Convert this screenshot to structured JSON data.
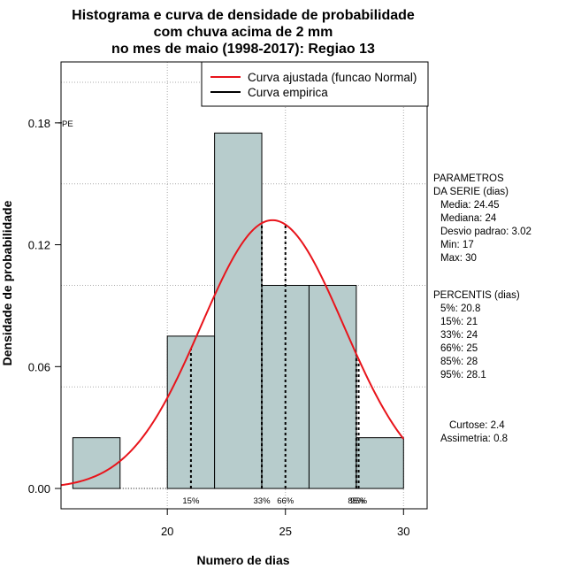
{
  "chart_data": {
    "type": "histogram",
    "title": [
      "Histograma e curva de densidade de probabilidade",
      "com chuva acima de 2 mm",
      "no mes de maio (1998-2017): Regiao 13"
    ],
    "xlabel": "Numero de dias",
    "ylabel": "Densidade de probabilidade",
    "xlim": [
      15.5,
      31
    ],
    "ylim": [
      -0.01,
      0.21
    ],
    "x_ticks": [
      20,
      25,
      30
    ],
    "y_ticks": [
      0.0,
      0.06,
      0.12,
      0.18
    ],
    "y_tick_labels": [
      "0.00",
      "0.06",
      "0.12",
      "0.18"
    ],
    "bins": [
      {
        "x0": 16,
        "x1": 18,
        "density": 0.025
      },
      {
        "x0": 18,
        "x1": 20,
        "density": 0.0
      },
      {
        "x0": 20,
        "x1": 22,
        "density": 0.075
      },
      {
        "x0": 22,
        "x1": 24,
        "density": 0.175
      },
      {
        "x0": 24,
        "x1": 26,
        "density": 0.1
      },
      {
        "x0": 26,
        "x1": 28,
        "density": 0.1
      },
      {
        "x0": 28,
        "x1": 30,
        "density": 0.025
      }
    ],
    "grid_x": [
      20,
      25,
      30
    ],
    "grid_y": [
      0.05,
      0.1,
      0.15,
      0.2
    ],
    "normal_curve": {
      "mean": 24.45,
      "sd": 3.02,
      "x_range": [
        15.5,
        30
      ]
    },
    "percentile_lines": [
      {
        "label": "15%",
        "x": 21
      },
      {
        "label": "33%",
        "x": 24
      },
      {
        "label": "66%",
        "x": 25
      },
      {
        "label": "85%",
        "x": 28
      },
      {
        "label": "95%",
        "x": 28.1
      }
    ],
    "pe_marker": {
      "label": "PE",
      "y": 0.18
    },
    "legend": {
      "position": "top-right",
      "entries": [
        {
          "label": "Curva ajustada (funcao Normal)",
          "color": "#e8141b"
        },
        {
          "label": "Curva empirica",
          "color": "#000000"
        }
      ]
    },
    "colors": {
      "bar_fill": "#b7cccc",
      "curve": "#e8141b",
      "grid": "#aaaaaa"
    }
  },
  "side_panel": {
    "parametros_title": [
      "PARAMETROS",
      "DA SERIE (dias)"
    ],
    "parametros": [
      "Media: 24.45",
      "Mediana: 24",
      "Desvio padrao: 3.02",
      "Min: 17",
      "Max: 30"
    ],
    "percentis_title": "PERCENTIS (dias)",
    "percentis": [
      "5%: 20.8",
      "15%: 21",
      "33%: 24",
      "66%: 25",
      "85%: 28",
      "95%: 28.1"
    ],
    "curtose": "Curtose: 2.4",
    "assimetria": "Assimetria: 0.8"
  }
}
